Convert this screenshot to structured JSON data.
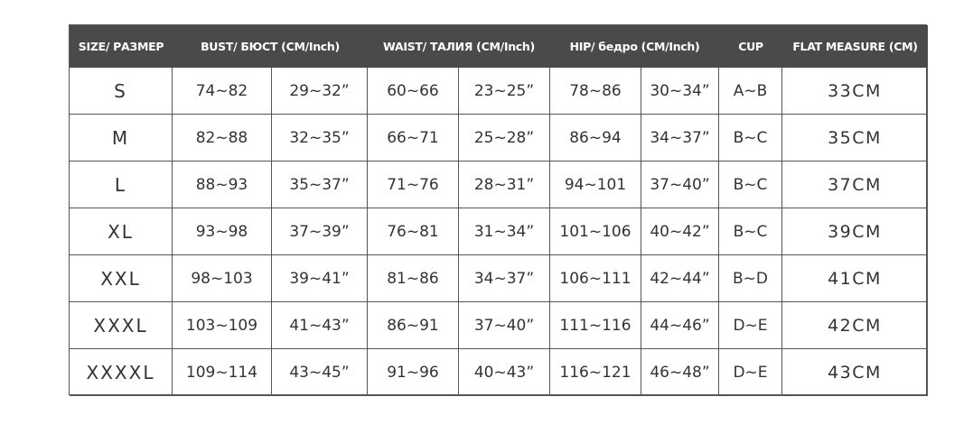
{
  "table": {
    "header": [
      "SIZE/ РАЗМЕР",
      "BUST/ БЮСТ (CM/Inch)",
      "WAIST/ ТАЛИЯ (CM/Inch)",
      "HIP/ бедро (CM/Inch)",
      "CUP",
      "FLAT MEASURE (CM)"
    ],
    "rows": [
      [
        "S",
        "74~82",
        "29~32”",
        "60~66",
        "23~25”",
        "78~86",
        "30~34”",
        "A~B",
        "33CM"
      ],
      [
        "M",
        "82~88",
        "32~35”",
        "66~71",
        "25~28”",
        "86~94",
        "34~37”",
        "B~C",
        "35CM"
      ],
      [
        "L",
        "88~93",
        "35~37”",
        "71~76",
        "28~31”",
        "94~101",
        "37~40”",
        "B~C",
        "37CM"
      ],
      [
        "XL",
        "93~98",
        "37~39”",
        "76~81",
        "31~34”",
        "101~106",
        "40~42”",
        "B~C",
        "39CM"
      ],
      [
        "XXL",
        "98~103",
        "39~41”",
        "81~86",
        "34~37”",
        "106~111",
        "42~44”",
        "B~D",
        "41CM"
      ],
      [
        "XXXL",
        "103~109",
        "41~43”",
        "86~91",
        "37~40”",
        "111~116",
        "44~46”",
        "D~E",
        "42CM"
      ],
      [
        "XXXXL",
        "109~114",
        "43~45”",
        "91~96",
        "40~43”",
        "116~121",
        "46~48”",
        "D~E",
        "43CM"
      ]
    ]
  }
}
